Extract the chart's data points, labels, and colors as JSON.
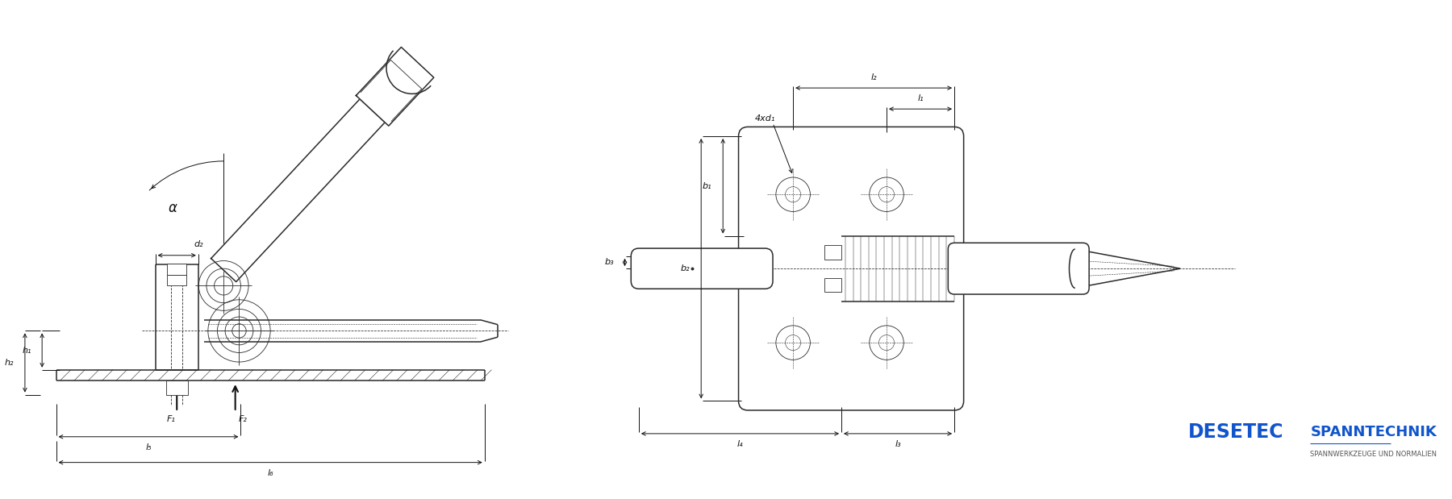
{
  "bg_color": "#ffffff",
  "line_color": "#2a2a2a",
  "dim_color": "#111111",
  "blue_color": "#1155cc",
  "gray_color": "#555555",
  "logo_text1": "DESETEC",
  "logo_text2": "SPANNTECHNIK",
  "logo_sub": "SPANNWERKZEUGE UND NORMALIEN",
  "left_labels": {
    "alpha": "α",
    "d2": "d₂",
    "h1": "h₁",
    "h2": "h₂",
    "F1": "F₁",
    "F2": "F₂",
    "l5": "l₅",
    "l6": "l₆"
  },
  "right_labels": {
    "l1": "l₁",
    "l2": "l₂",
    "l3": "l₃",
    "l4": "l₄",
    "b1": "b₁",
    "b2": "b₂",
    "b3": "b₃",
    "4xd1": "4xd₁"
  }
}
